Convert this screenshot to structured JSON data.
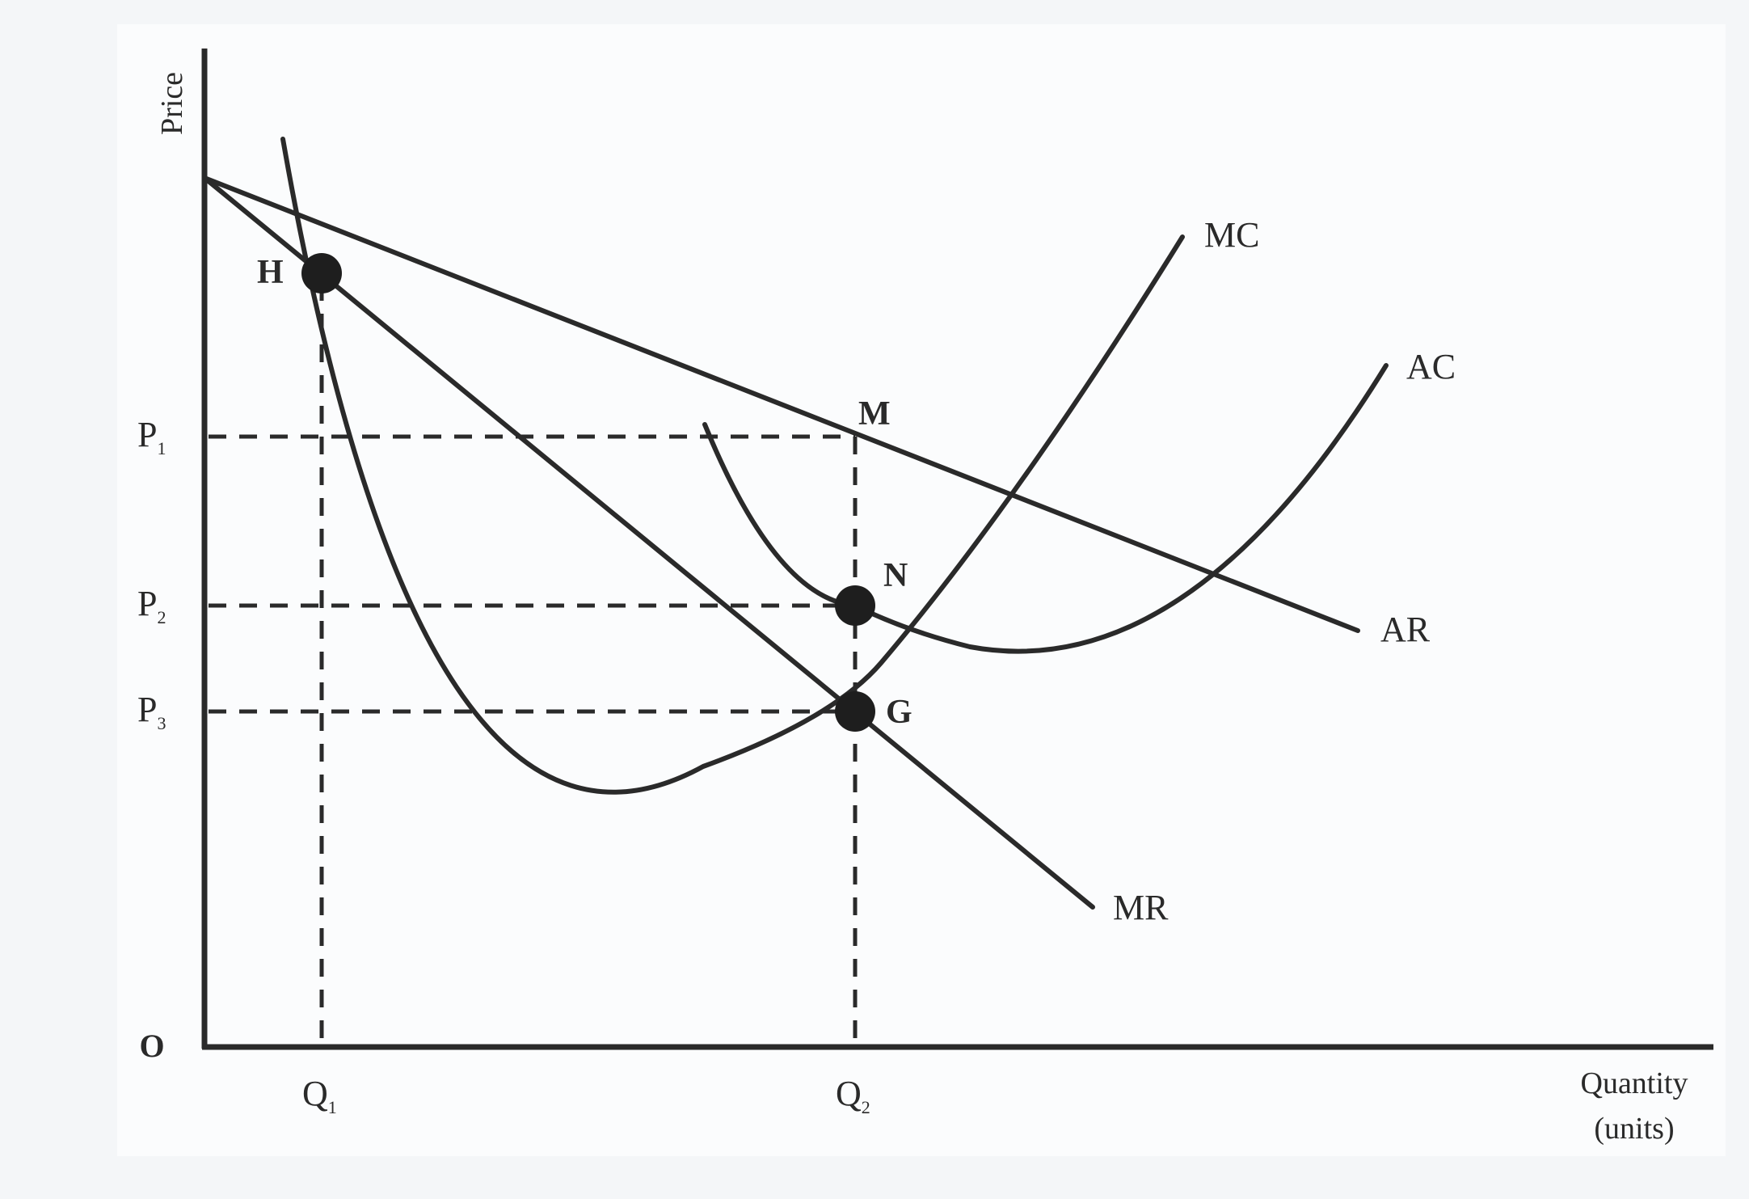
{
  "axes": {
    "y_label": "Price",
    "x_label_line1": "Quantity",
    "x_label_line2": "(units)",
    "origin": "O"
  },
  "price_levels": [
    {
      "main": "P",
      "sub": "1"
    },
    {
      "main": "P",
      "sub": "2"
    },
    {
      "main": "P",
      "sub": "3"
    }
  ],
  "quantity_levels": [
    {
      "main": "Q",
      "sub": "1"
    },
    {
      "main": "Q",
      "sub": "2"
    }
  ],
  "curves": {
    "mc": "MC",
    "ac": "AC",
    "ar": "AR",
    "mr": "MR"
  },
  "points": {
    "h": "H",
    "m": "M",
    "n": "N",
    "g": "G"
  },
  "colors": {
    "ink": "#2a2a2a",
    "background": "#fbfcfd"
  }
}
